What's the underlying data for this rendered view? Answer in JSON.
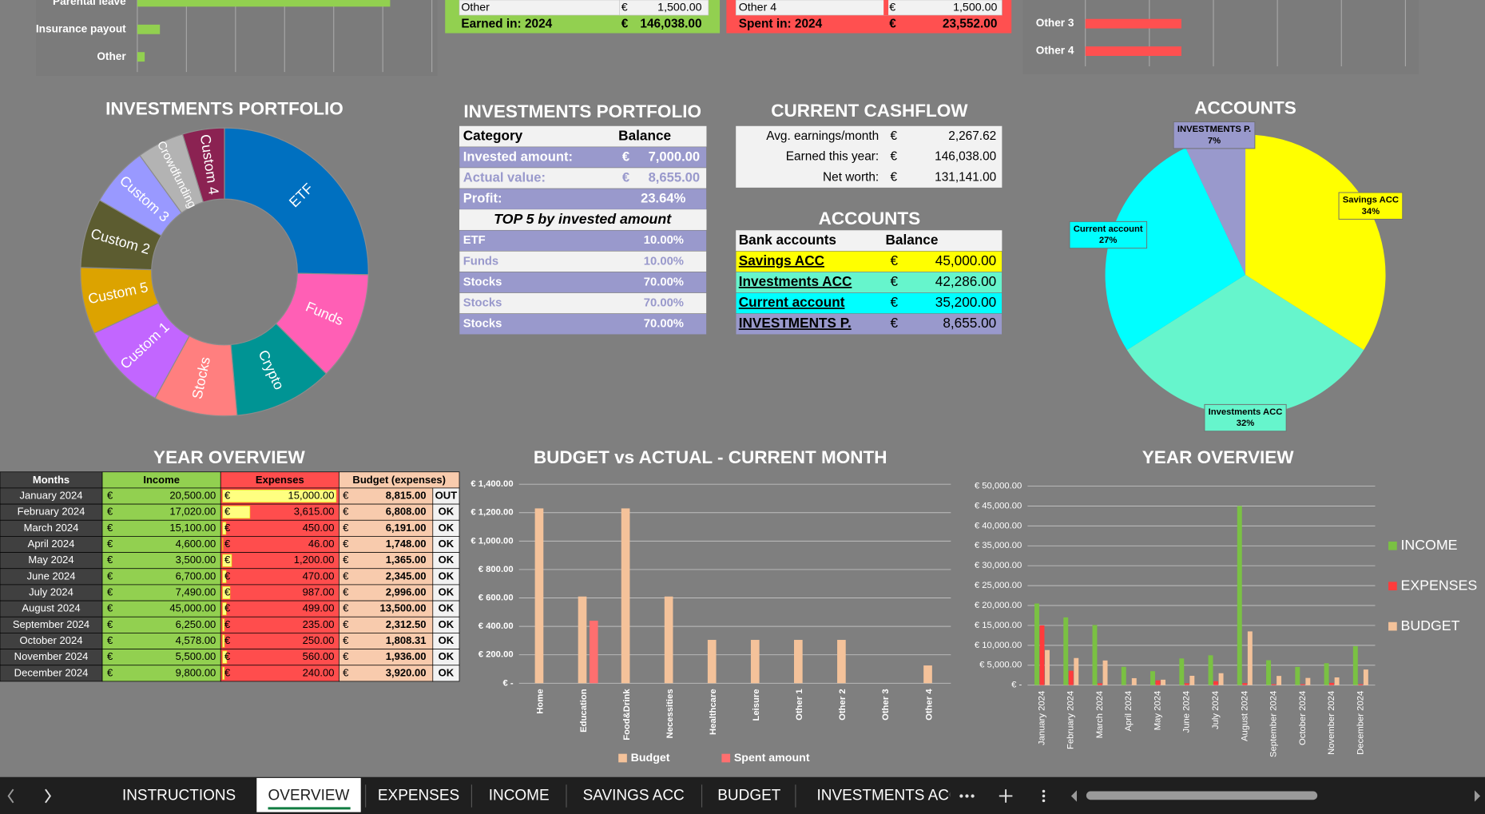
{
  "chart_data": [
    {
      "type": "bar",
      "orientation": "horizontal",
      "categories": [
        "Parental leave",
        "Insurance payout",
        "Other"
      ],
      "values": [
        51500,
        4600,
        1500
      ],
      "color": "#92d050",
      "xlim": [
        0,
        60000
      ],
      "xticks": [
        0,
        10000,
        20000,
        30000,
        40000,
        50000,
        60000
      ],
      "grid": true
    },
    {
      "type": "bar",
      "orientation": "horizontal",
      "categories": [
        "Other 3",
        "Other 4"
      ],
      "values": [
        1500,
        1500
      ],
      "color": "#ff5050",
      "xlim": [
        0,
        5000
      ],
      "xticks": [
        0,
        1000,
        2000,
        3000,
        4000,
        5000
      ],
      "grid": true
    },
    {
      "type": "donut",
      "title": "INVESTMENTS PORTFOLIO",
      "categories": [
        "ETF",
        "Funds",
        "Crypto",
        "Stocks",
        "Custom 1",
        "Custom 5",
        "Custom 2",
        "Custom 3",
        "Crowdfunding",
        "Custom 4"
      ],
      "values": [
        25.3,
        12.2,
        11.1,
        9.4,
        10,
        7.5,
        7.8,
        6.7,
        5.3,
        4.7
      ],
      "colors": [
        "#0070c0",
        "#ff5fb5",
        "#009494",
        "#ff7f7f",
        "#c266ff",
        "#dca300",
        "#5c5c30",
        "#9999ff",
        "#b3b3b3",
        "#8b2252"
      ]
    },
    {
      "type": "pie",
      "title": "ACCOUNTS",
      "categories": [
        "Savings ACC",
        "Investments ACC",
        "Current account",
        "INVESTMENTS P."
      ],
      "values": [
        34,
        32,
        27,
        7
      ],
      "value_labels": [
        "34%",
        "32%",
        "27%",
        "7%"
      ],
      "colors": [
        "#ffff00",
        "#66f5cc",
        "#00ffff",
        "#9999cc"
      ]
    },
    {
      "type": "bar",
      "orientation": "vertical",
      "title": "BUDGET vs ACTUAL - CURRENT MONTH",
      "categories": [
        "Home",
        "Education",
        "Food&Drink",
        "Necessities",
        "Healthcare",
        "Leisure",
        "Other 1",
        "Other 2",
        "Other 3",
        "Other 4"
      ],
      "series": [
        {
          "name": "Budget",
          "color": "#f4c29a",
          "values": [
            1230,
            610,
            1230,
            610,
            305,
            305,
            305,
            305,
            0,
            125
          ]
        },
        {
          "name": "Spent amount",
          "color": "#ff6f6f",
          "values": [
            0,
            440,
            0,
            0,
            0,
            0,
            0,
            0,
            0,
            0
          ]
        }
      ],
      "ylim": [
        0,
        1400
      ],
      "yticks": [
        {
          "value": 0,
          "label": "€ -"
        },
        {
          "value": 200,
          "label": "€ 200.00"
        },
        {
          "value": 400,
          "label": "€ 400.00"
        },
        {
          "value": 600,
          "label": "€ 600.00"
        },
        {
          "value": 800,
          "label": "€ 800.00"
        },
        {
          "value": 1000,
          "label": "€ 1,000.00"
        },
        {
          "value": 1200,
          "label": "€ 1,200.00"
        },
        {
          "value": 1400,
          "label": "€ 1,400.00"
        }
      ],
      "grid": true,
      "legend": "bottom"
    },
    {
      "type": "bar",
      "orientation": "vertical",
      "title": "YEAR OVERVIEW",
      "categories": [
        "January 2024",
        "February 2024",
        "March 2024",
        "April 2024",
        "May 2024",
        "June 2024",
        "July 2024",
        "August 2024",
        "September 2024",
        "October 2024",
        "November 2024",
        "December 2024"
      ],
      "series": [
        {
          "name": "INCOME",
          "color": "#7ac143",
          "values": [
            20500,
            17020,
            15100,
            4600,
            3500,
            6700,
            7490,
            45000,
            6250,
            4578,
            5500,
            9800
          ]
        },
        {
          "name": "EXPENSES",
          "color": "#ff3b3b",
          "values": [
            15000,
            3615,
            450,
            46,
            1200,
            470,
            987,
            499,
            235,
            250,
            560,
            240
          ]
        },
        {
          "name": "BUDGET",
          "color": "#f4c29a",
          "values": [
            8815,
            6808,
            6191,
            1748,
            1365,
            2345,
            2996,
            13500,
            2312.5,
            1808.31,
            1936,
            3920
          ]
        }
      ],
      "ylim": [
        0,
        50000
      ],
      "yticks": [
        {
          "value": 0,
          "label": "€ -"
        },
        {
          "value": 5000,
          "label": "€ 5,000.00"
        },
        {
          "value": 10000,
          "label": "€ 10,000.00"
        },
        {
          "value": 15000,
          "label": "€ 15,000.00"
        },
        {
          "value": 20000,
          "label": "€ 20,000.00"
        },
        {
          "value": 25000,
          "label": "€ 25,000.00"
        },
        {
          "value": 30000,
          "label": "€ 30,000.00"
        },
        {
          "value": 35000,
          "label": "€ 35,000.00"
        },
        {
          "value": 40000,
          "label": "€ 40,000.00"
        },
        {
          "value": 45000,
          "label": "€ 45,000.00"
        },
        {
          "value": 50000,
          "label": "€ 50,000.00"
        }
      ],
      "grid": true,
      "legend": "right"
    }
  ],
  "income_table": {
    "rows": [
      [
        "Other",
        "€",
        "1,500.00"
      ],
      [
        "Earned in: 2024",
        "€",
        "146,038.00"
      ]
    ]
  },
  "expenses_table": {
    "rows": [
      [
        "Other 4",
        "€",
        "1,500.00"
      ],
      [
        "Spent in: 2024",
        "€",
        "23,552.00"
      ]
    ]
  },
  "portfolio_table": {
    "title": "INVESTMENTS PORTFOLIO",
    "header": [
      "Category",
      "Balance"
    ],
    "rows": [
      [
        "Invested amount:",
        "€",
        "7,000.00"
      ],
      [
        "Actual value:",
        "€",
        "8,655.00"
      ],
      [
        "Profit:",
        "23.64%"
      ]
    ],
    "top5_title": "TOP 5 by invested amount",
    "top5": [
      [
        "ETF",
        "10.00%"
      ],
      [
        "Funds",
        "10.00%"
      ],
      [
        "Stocks",
        "70.00%"
      ],
      [
        "Stocks",
        "70.00%"
      ],
      [
        "Stocks",
        "70.00%"
      ]
    ]
  },
  "cashflow_table": {
    "title": "CURRENT CASHFLOW",
    "rows": [
      [
        "Avg. earnings/month",
        "€",
        "2,267.62"
      ],
      [
        "Earned this year:",
        "€",
        "146,038.00"
      ],
      [
        "Net worth:",
        "€",
        "131,141.00"
      ]
    ]
  },
  "accounts_table": {
    "title": "ACCOUNTS",
    "header": [
      "Bank accounts",
      "Balance"
    ],
    "rows": [
      [
        "Savings ACC",
        "€",
        "45,000.00"
      ],
      [
        "Investments ACC",
        "€",
        "42,286.00"
      ],
      [
        "Current account",
        "€",
        "35,200.00"
      ],
      [
        "INVESTMENTS P.",
        "€",
        "8,655.00"
      ]
    ]
  },
  "year_table": {
    "title": "YEAR OVERVIEW",
    "header": [
      "Months",
      "Income",
      "Expenses",
      "Budget (expenses)"
    ],
    "rows": [
      [
        "January 2024",
        "€",
        "20,500.00",
        "€",
        "15,000.00",
        "€",
        "8,815.00",
        "OUT"
      ],
      [
        "February 2024",
        "€",
        "17,020.00",
        "€",
        "3,615.00",
        "€",
        "6,808.00",
        "OK"
      ],
      [
        "March 2024",
        "€",
        "15,100.00",
        "€",
        "450.00",
        "€",
        "6,191.00",
        "OK"
      ],
      [
        "April 2024",
        "€",
        "4,600.00",
        "€",
        "46.00",
        "€",
        "1,748.00",
        "OK"
      ],
      [
        "May 2024",
        "€",
        "3,500.00",
        "€",
        "1,200.00",
        "€",
        "1,365.00",
        "OK"
      ],
      [
        "June 2024",
        "€",
        "6,700.00",
        "€",
        "470.00",
        "€",
        "2,345.00",
        "OK"
      ],
      [
        "July 2024",
        "€",
        "7,490.00",
        "€",
        "987.00",
        "€",
        "2,996.00",
        "OK"
      ],
      [
        "August 2024",
        "€",
        "45,000.00",
        "€",
        "499.00",
        "€",
        "13,500.00",
        "OK"
      ],
      [
        "September 2024",
        "€",
        "6,250.00",
        "€",
        "235.00",
        "€",
        "2,312.50",
        "OK"
      ],
      [
        "October 2024",
        "€",
        "4,578.00",
        "€",
        "250.00",
        "€",
        "1,808.31",
        "OK"
      ],
      [
        "November 2024",
        "€",
        "5,500.00",
        "€",
        "560.00",
        "€",
        "1,936.00",
        "OK"
      ],
      [
        "December 2024",
        "€",
        "9,800.00",
        "€",
        "240.00",
        "€",
        "3,920.00",
        "OK"
      ]
    ]
  },
  "sheet_tabs": {
    "tabs": [
      "INSTRUCTIONS",
      "OVERVIEW",
      "EXPENSES",
      "INCOME",
      "SAVINGS ACC",
      "BUDGET",
      "INVESTMENTS ACC"
    ],
    "active": 1
  }
}
